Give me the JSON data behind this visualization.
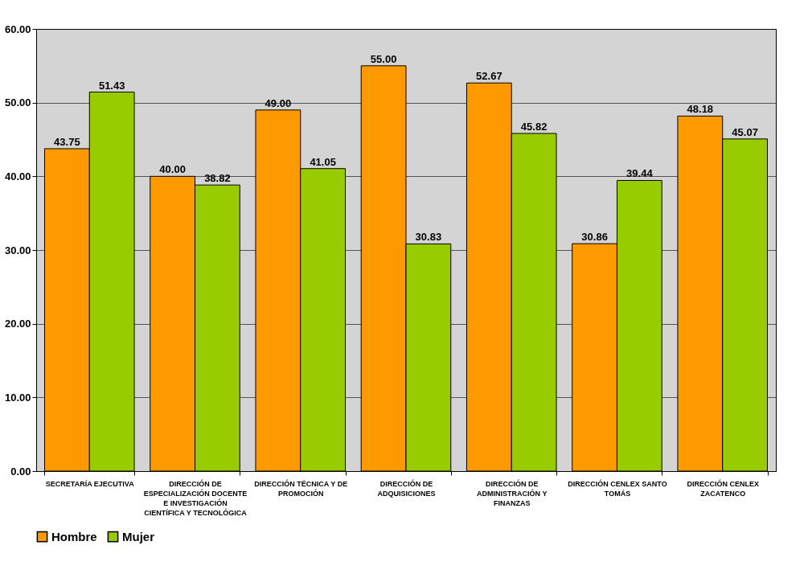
{
  "chart_data": {
    "type": "bar",
    "categories": [
      "SECRETARÍA EJECUTIVA",
      "DIRECCIÓN DE ESPECIALIZACIÓN DOCENTE E INVESTIGACIÓN CIENTÍFICA Y TECNOLÓGICA",
      "DIRECCIÓN TÉCNICA Y DE PROMOCIÓN",
      "DIRECCIÓN DE ADQUISICIONES",
      "DIRECCIÓN DE ADMINISTRACIÓN Y FINANZAS",
      "DIRECCIÓN CENLEX SANTO TOMÁS",
      "DIRECCIÓN CENLEX ZACATENCO"
    ],
    "series": [
      {
        "name": "Hombre",
        "color": "#ff9900",
        "values": [
          43.75,
          40.0,
          49.0,
          55.0,
          52.67,
          30.86,
          48.18
        ],
        "value_labels": [
          "43.75",
          "40.00",
          "49.00",
          "55.00",
          "52.67",
          "30.86",
          "48.18"
        ]
      },
      {
        "name": "Mujer",
        "color": "#99cc00",
        "values": [
          51.43,
          38.82,
          41.05,
          30.83,
          45.82,
          39.44,
          45.07
        ],
        "value_labels": [
          "51.43",
          "38.82",
          "41.05",
          "30.83",
          "45.82",
          "39.44",
          "45.07"
        ]
      }
    ],
    "ylim": [
      0,
      60
    ],
    "yticks": [
      {
        "value": 0,
        "label": "0.00"
      },
      {
        "value": 10,
        "label": "10.00"
      },
      {
        "value": 20,
        "label": "20.00"
      },
      {
        "value": 30,
        "label": "30.00"
      },
      {
        "value": 40,
        "label": "40.00"
      },
      {
        "value": 50,
        "label": "50.00"
      },
      {
        "value": 60,
        "label": "60.00"
      }
    ],
    "grid": "y",
    "legend": "bottom"
  }
}
